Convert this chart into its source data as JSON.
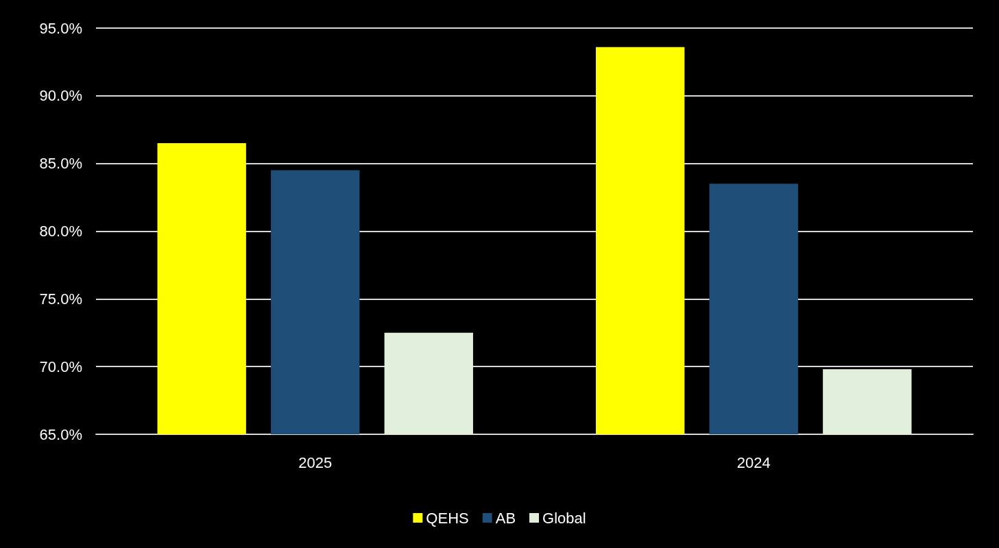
{
  "chart_data": {
    "type": "bar",
    "categories": [
      "2025",
      "2024"
    ],
    "series": [
      {
        "name": "QEHS",
        "color": "#ffff00",
        "values": [
          86.5,
          93.6
        ]
      },
      {
        "name": "AB",
        "color": "#1f4e79",
        "values": [
          84.5,
          83.5
        ]
      },
      {
        "name": "Global",
        "color": "#e2efda",
        "values": [
          72.5,
          69.8
        ]
      }
    ],
    "ylim": [
      65,
      95
    ],
    "yticks": [
      {
        "value": 65,
        "label": "65.0%"
      },
      {
        "value": 70,
        "label": "70.0%"
      },
      {
        "value": 75,
        "label": "75.0%"
      },
      {
        "value": 80,
        "label": "80.0%"
      },
      {
        "value": 85,
        "label": "85.0%"
      },
      {
        "value": 90,
        "label": "90.0%"
      },
      {
        "value": 95,
        "label": "95.0%"
      }
    ],
    "grid": "y",
    "legend": "bottom"
  }
}
